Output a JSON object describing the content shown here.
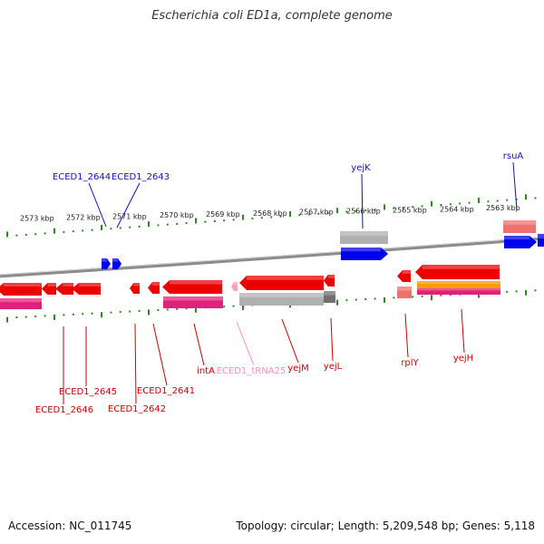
{
  "title": "Escherichia coli ED1a, complete genome",
  "footer": {
    "accession": "Accession: NC_011745",
    "topology": "Topology: circular; Length: 5,209,548 bp; Genes: 5,118"
  },
  "colors": {
    "backbone": "#8c8c8c",
    "tick": "#2e8b20",
    "gene_label": "#cc0000",
    "trna_label": "#ff8fb8",
    "upper_label": "#1010c0",
    "red": "#ee0000",
    "magenta": "#e0207a",
    "blue": "#0000ee",
    "gray": "#b0b0b0",
    "orange": "#ff9900"
  },
  "kbp_labels": [
    "2573 kbp",
    "2572 kbp",
    "2571 kbp",
    "2570 kbp",
    "2569 kbp",
    "2568 kbp",
    "2567 kbp",
    "2566 kbp",
    "2565 kbp",
    "2564 kbp",
    "2563 kbp"
  ],
  "upper_genes": [
    "ECED1_2644",
    "ECED1_2643",
    "yejK",
    "rsuA"
  ],
  "lower_genes": [
    "ECED1_2645",
    "ECED1_2646",
    "ECED1_2642",
    "ECED1_2641",
    "intA",
    "ECED1_tRNA25",
    "yejM",
    "yejL",
    "rplY",
    "yejH"
  ]
}
